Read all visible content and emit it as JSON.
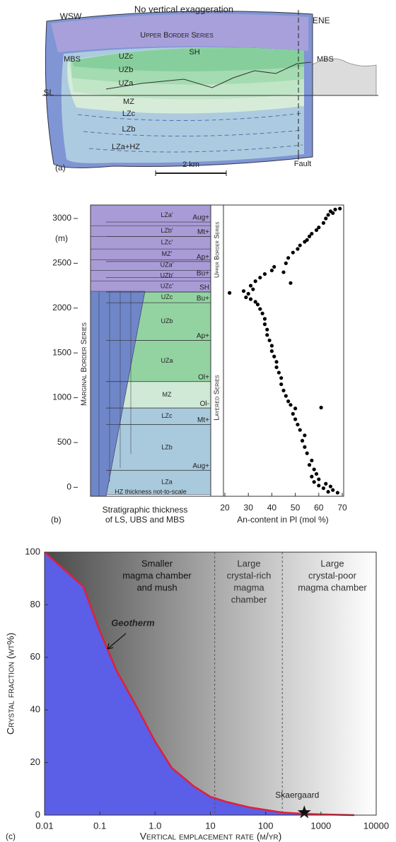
{
  "chart_data": [
    {
      "type": "diagram",
      "panel_label": "(a)",
      "title": "No vertical exaggeration",
      "labels": {
        "wsw": "WSW",
        "ene": "ENE",
        "ubs": "Upper Border Series",
        "mbs_left": "MBS",
        "mbs_right": "MBS",
        "uzc": "UZc",
        "uzb": "UZb",
        "uza": "UZa",
        "sh": "SH",
        "sl": "SL",
        "mz": "MZ",
        "lzc": "LZc",
        "lzb": "LZb",
        "lza_hz": "LZa+HZ",
        "fault": "Fault",
        "scale": "2 km"
      }
    },
    {
      "type": "scatter",
      "panel_label": "(b)",
      "y_unit": "(m)",
      "column_xlabel": [
        "Stratigraphic thickness",
        "of LS, UBS and MBS"
      ],
      "xlabel": "An-content in Pl (mol %)",
      "mbs_label": "Marginal Border Series",
      "ubs_label": "Upper Border Series",
      "ls_label": "Layered Series",
      "note": "HZ thickness not-to-scale",
      "zones": [
        {
          "name": "LZa",
          "range": [
            -80,
            190
          ],
          "color": "#a9c9dc"
        },
        {
          "name": "LZb",
          "range": [
            190,
            700
          ],
          "color": "#a9c9dc"
        },
        {
          "name": "LZc",
          "range": [
            700,
            885
          ],
          "color": "#a9c9dc"
        },
        {
          "name": "MZ",
          "range": [
            885,
            1180
          ],
          "color": "#cfe9d6"
        },
        {
          "name": "UZa",
          "range": [
            1180,
            1640
          ],
          "color": "#93d3a2"
        },
        {
          "name": "UZb",
          "range": [
            1640,
            2060
          ],
          "color": "#93d3a2"
        },
        {
          "name": "UZc",
          "range": [
            2060,
            2180
          ],
          "color": "#93d3a2"
        },
        {
          "name": "UZc'",
          "range": [
            2180,
            2300
          ],
          "color": "#a99bd6"
        },
        {
          "name": "UZb'",
          "range": [
            2300,
            2420
          ],
          "color": "#a99bd6"
        },
        {
          "name": "UZa'",
          "range": [
            2420,
            2540
          ],
          "color": "#a99bd6"
        },
        {
          "name": "MZ'",
          "range": [
            2540,
            2660
          ],
          "color": "#a99bd6"
        },
        {
          "name": "LZc'",
          "range": [
            2660,
            2800
          ],
          "color": "#a99bd6"
        },
        {
          "name": "LZb'",
          "range": [
            2800,
            2920
          ],
          "color": "#a99bd6"
        },
        {
          "name": "LZa'",
          "range": [
            2920,
            3150
          ],
          "color": "#a99bd6"
        }
      ],
      "markers": [
        {
          "label": "Aug+",
          "height": 190
        },
        {
          "label": "Mt+",
          "height": 700
        },
        {
          "label": "Ol-",
          "height": 885
        },
        {
          "label": "Ol+",
          "height": 1180
        },
        {
          "label": "Ap+",
          "height": 1640
        },
        {
          "label": "Bu+",
          "height": 2060
        },
        {
          "label": "SH",
          "height": 2180
        },
        {
          "label": "Bu+",
          "height": 2340
        },
        {
          "label": "Ap+",
          "height": 2520
        },
        {
          "label": "Mt+",
          "height": 2800
        },
        {
          "label": "Aug+",
          "height": 2960
        }
      ],
      "x": [
        68,
        66,
        64,
        62,
        60,
        65,
        63,
        58,
        60,
        57,
        59,
        58,
        56,
        57,
        55,
        54,
        53,
        54,
        52,
        51,
        50,
        49,
        50,
        48,
        47,
        61,
        46,
        45,
        44,
        44,
        43,
        42,
        42,
        41,
        40,
        40,
        39,
        38,
        38,
        37,
        37,
        36,
        35,
        34,
        33,
        31,
        29,
        30,
        28,
        32,
        22,
        31,
        33,
        35,
        37,
        40,
        41,
        45,
        48,
        46,
        47,
        49,
        51,
        52,
        54,
        55,
        56,
        57,
        59,
        60,
        62,
        63,
        64,
        65,
        67,
        69,
        66
      ],
      "values": [
        -60,
        -30,
        -50,
        -10,
        20,
        10,
        40,
        60,
        90,
        120,
        150,
        200,
        250,
        300,
        380,
        450,
        520,
        580,
        640,
        700,
        760,
        820,
        880,
        920,
        960,
        890,
        1020,
        1080,
        1150,
        1220,
        1280,
        1340,
        1400,
        1460,
        1520,
        1580,
        1640,
        1700,
        1760,
        1820,
        1880,
        1940,
        1990,
        2040,
        2070,
        2100,
        2120,
        2160,
        2190,
        2210,
        2170,
        2250,
        2300,
        2340,
        2380,
        2420,
        2460,
        2400,
        2280,
        2500,
        2560,
        2620,
        2660,
        2700,
        2740,
        2760,
        2800,
        2830,
        2870,
        2900,
        2950,
        3000,
        3040,
        3080,
        3100,
        3110,
        3060
      ],
      "color": "#000000",
      "xlim": [
        20,
        70
      ],
      "ylim": [
        -100,
        3150
      ],
      "xticks": [
        20,
        30,
        40,
        50,
        60,
        70
      ],
      "yticks": [
        0,
        500,
        1000,
        1500,
        2000,
        2500,
        3000
      ]
    },
    {
      "type": "area",
      "panel_label": "(c)",
      "xlabel": "Vertical emplacement rate (m/yr)",
      "ylabel": "Crystal fraction (wt%)",
      "xscale": "log",
      "xlim": [
        0.01,
        10000
      ],
      "ylim": [
        0,
        100
      ],
      "xticks": [
        0.01,
        0.1,
        {
          "value": 1,
          "label": "1.0"
        },
        10,
        100,
        1000,
        10000
      ],
      "yticks": [
        0,
        20,
        40,
        60,
        80,
        100
      ],
      "x": [
        0.01,
        0.05,
        0.1,
        0.2,
        0.5,
        1,
        2,
        5,
        10,
        20,
        50,
        100,
        200,
        500,
        1000,
        4000
      ],
      "values": [
        100,
        87,
        70,
        55,
        40,
        28,
        18,
        11,
        7,
        5,
        3,
        2,
        1,
        0.5,
        0.3,
        0
      ],
      "color": "#5b5ee6",
      "line_color": "#e0203a",
      "curve_label": "Geotherm",
      "boundaries": [
        12,
        200
      ],
      "regions": [
        [
          "Smaller",
          "magma chamber",
          "and mush"
        ],
        [
          "Large",
          "crystal-rich",
          "magma",
          "chamber"
        ],
        [
          "Large",
          "crystal-poor",
          "magma chamber"
        ]
      ],
      "skaergaard": {
        "label": "Skaergaard",
        "x": 500,
        "y": 1
      }
    }
  ]
}
